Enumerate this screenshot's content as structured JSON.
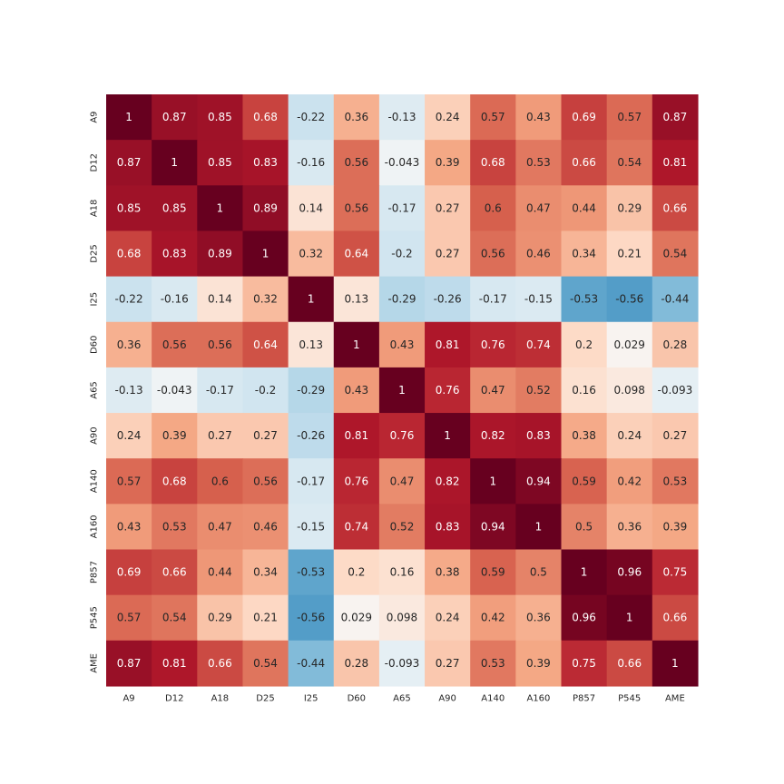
{
  "chart_data": {
    "type": "heatmap",
    "title": "",
    "xlabel": "",
    "ylabel": "",
    "x_labels": [
      "A9",
      "D12",
      "A18",
      "D25",
      "I25",
      "D60",
      "A65",
      "A90",
      "A140",
      "A160",
      "P857",
      "P545",
      "AME"
    ],
    "y_labels": [
      "A9",
      "D12",
      "A18",
      "D25",
      "I25",
      "D60",
      "A65",
      "A90",
      "A140",
      "A160",
      "P857",
      "P545",
      "AME"
    ],
    "values": [
      [
        1,
        0.87,
        0.85,
        0.68,
        -0.22,
        0.36,
        -0.13,
        0.24,
        0.57,
        0.43,
        0.69,
        0.57,
        0.87
      ],
      [
        0.87,
        1,
        0.85,
        0.83,
        -0.16,
        0.56,
        -0.043,
        0.39,
        0.68,
        0.53,
        0.66,
        0.54,
        0.81
      ],
      [
        0.85,
        0.85,
        1,
        0.89,
        0.14,
        0.56,
        -0.17,
        0.27,
        0.6,
        0.47,
        0.44,
        0.29,
        0.66
      ],
      [
        0.68,
        0.83,
        0.89,
        1,
        0.32,
        0.64,
        -0.2,
        0.27,
        0.56,
        0.46,
        0.34,
        0.21,
        0.54
      ],
      [
        -0.22,
        -0.16,
        0.14,
        0.32,
        1,
        0.13,
        -0.29,
        -0.26,
        -0.17,
        -0.15,
        -0.53,
        -0.56,
        -0.44
      ],
      [
        0.36,
        0.56,
        0.56,
        0.64,
        0.13,
        1,
        0.43,
        0.81,
        0.76,
        0.74,
        0.2,
        0.029,
        0.28
      ],
      [
        -0.13,
        -0.043,
        -0.17,
        -0.2,
        -0.29,
        0.43,
        1,
        0.76,
        0.47,
        0.52,
        0.16,
        0.098,
        -0.093
      ],
      [
        0.24,
        0.39,
        0.27,
        0.27,
        -0.26,
        0.81,
        0.76,
        1,
        0.82,
        0.83,
        0.38,
        0.24,
        0.27
      ],
      [
        0.57,
        0.68,
        0.6,
        0.56,
        -0.17,
        0.76,
        0.47,
        0.82,
        1,
        0.94,
        0.59,
        0.42,
        0.53
      ],
      [
        0.43,
        0.53,
        0.47,
        0.46,
        -0.15,
        0.74,
        0.52,
        0.83,
        0.94,
        1,
        0.5,
        0.36,
        0.39
      ],
      [
        0.69,
        0.66,
        0.44,
        0.34,
        -0.53,
        0.2,
        0.16,
        0.38,
        0.59,
        0.5,
        1,
        0.96,
        0.75
      ],
      [
        0.57,
        0.54,
        0.29,
        0.21,
        -0.56,
        0.029,
        0.098,
        0.24,
        0.42,
        0.36,
        0.96,
        1,
        0.66
      ],
      [
        0.87,
        0.81,
        0.66,
        0.54,
        -0.44,
        0.28,
        -0.093,
        0.27,
        0.53,
        0.39,
        0.75,
        0.66,
        1
      ]
    ],
    "value_range": [
      -1,
      1
    ],
    "colormap": "RdBu_r",
    "colorbar": false,
    "grid": false
  }
}
